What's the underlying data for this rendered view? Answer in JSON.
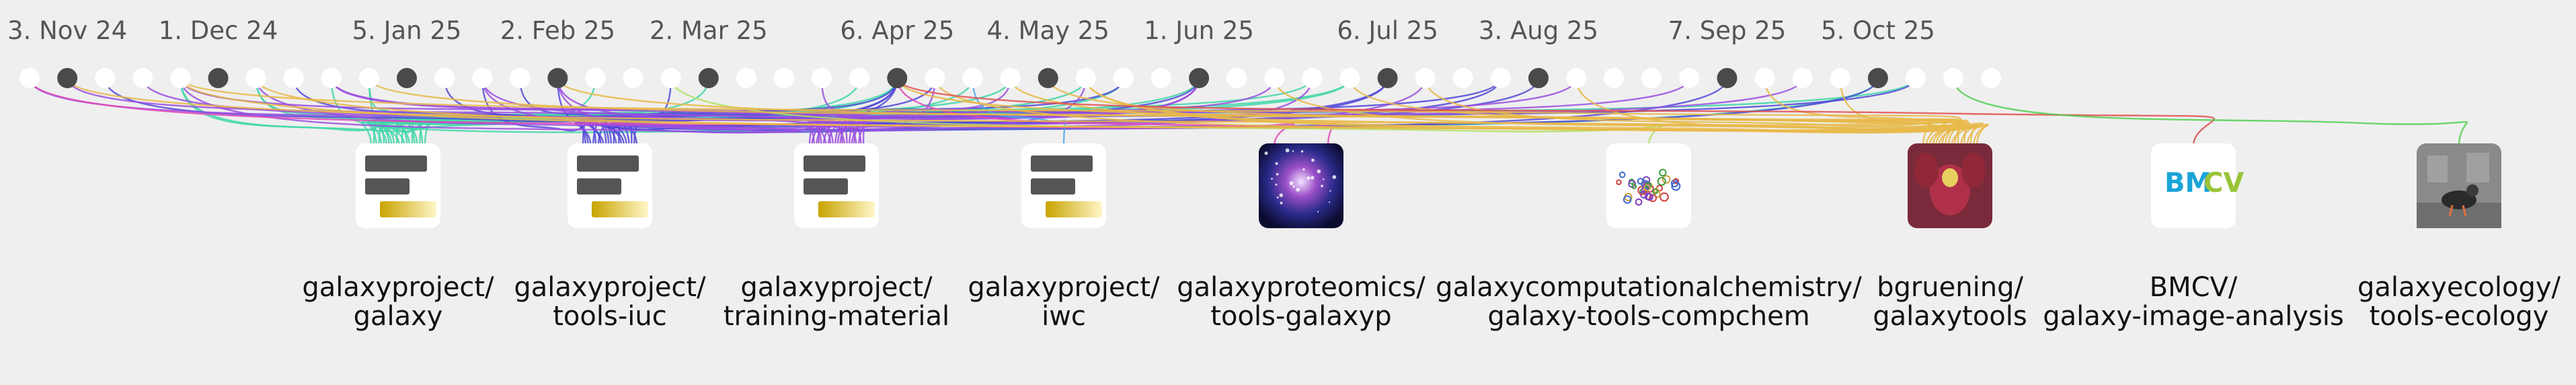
{
  "timeline": {
    "dates": [
      "3. Nov 24",
      "1. Dec 24",
      "5. Jan 25",
      "2. Feb 25",
      "2. Mar 25",
      "6. Apr 25",
      "4. May 25",
      "1. Jun 25",
      "6. Jul 25",
      "3. Aug 25",
      "7. Sep 25",
      "5. Oct 25"
    ],
    "week_count": 53,
    "marked_weeks": [
      1,
      5,
      10,
      14,
      18,
      23,
      27,
      31,
      36,
      40,
      45,
      49
    ]
  },
  "colors": {
    "background": "#efefef",
    "open_dot": "#ffffff",
    "filled_dot": "#4a4a4a",
    "label": "#555555"
  },
  "repositories": [
    {
      "line1": "galaxyproject/",
      "line2": "galaxy",
      "logo": "galaxy-logo-icon",
      "color": "#40d6a8",
      "links": 22
    },
    {
      "line1": "galaxyproject/",
      "line2": "tools-iuc",
      "logo": "galaxy-logo-icon",
      "color": "#5148d8",
      "links": 22
    },
    {
      "line1": "galaxyproject/",
      "line2": "training-material",
      "logo": "galaxy-logo-icon",
      "color": "#9b4ee0",
      "links": 24
    },
    {
      "line1": "galaxyproject/",
      "line2": "iwc",
      "logo": "galaxy-logo-icon",
      "color": "#4aa8e8",
      "links": 1
    },
    {
      "line1": "galaxyproteomics/",
      "line2": "tools-galaxyp",
      "logo": "galaxy-nebula-icon",
      "color": "#e048b8",
      "links": 2
    },
    {
      "line1": "galaxycomputationalchemistry/",
      "line2": "galaxy-tools-compchem",
      "logo": "molecule-icon",
      "color": "#b0e060",
      "links": 1
    },
    {
      "line1": "bgruening/",
      "line2": "galaxytools",
      "logo": "orchid-photo-icon",
      "color": "#e8b848",
      "links": 18
    },
    {
      "line1": "BMCV/",
      "line2": "galaxy-image-analysis",
      "logo": "bmcv-logo-icon",
      "color": "#e05050",
      "links": 1
    },
    {
      "line1": "galaxyecology/",
      "line2": "tools-ecology",
      "logo": "bird-photo-icon",
      "color": "#50d050",
      "links": 1
    }
  ]
}
